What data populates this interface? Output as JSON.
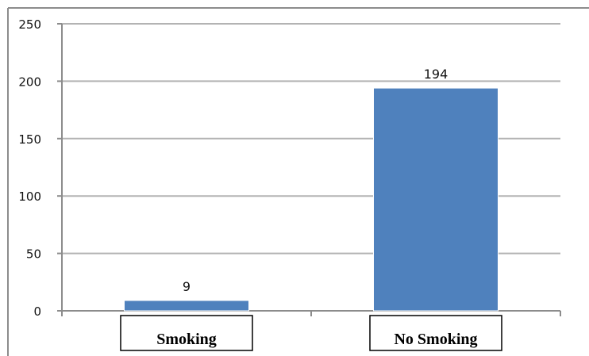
{
  "chart_data": {
    "type": "bar",
    "categories": [
      "Smoking",
      "No Smoking"
    ],
    "values": [
      9,
      194
    ],
    "data_labels": [
      "9",
      "194"
    ],
    "ylim": [
      0,
      250
    ],
    "yticks": [
      0,
      50,
      100,
      150,
      200,
      250
    ],
    "ytick_labels": [
      "0",
      "50",
      "100",
      "150",
      "200",
      "250"
    ],
    "grid": true,
    "legend": "none",
    "bar_color": "#4f81bd",
    "grid_color": "#b3b3b3"
  }
}
